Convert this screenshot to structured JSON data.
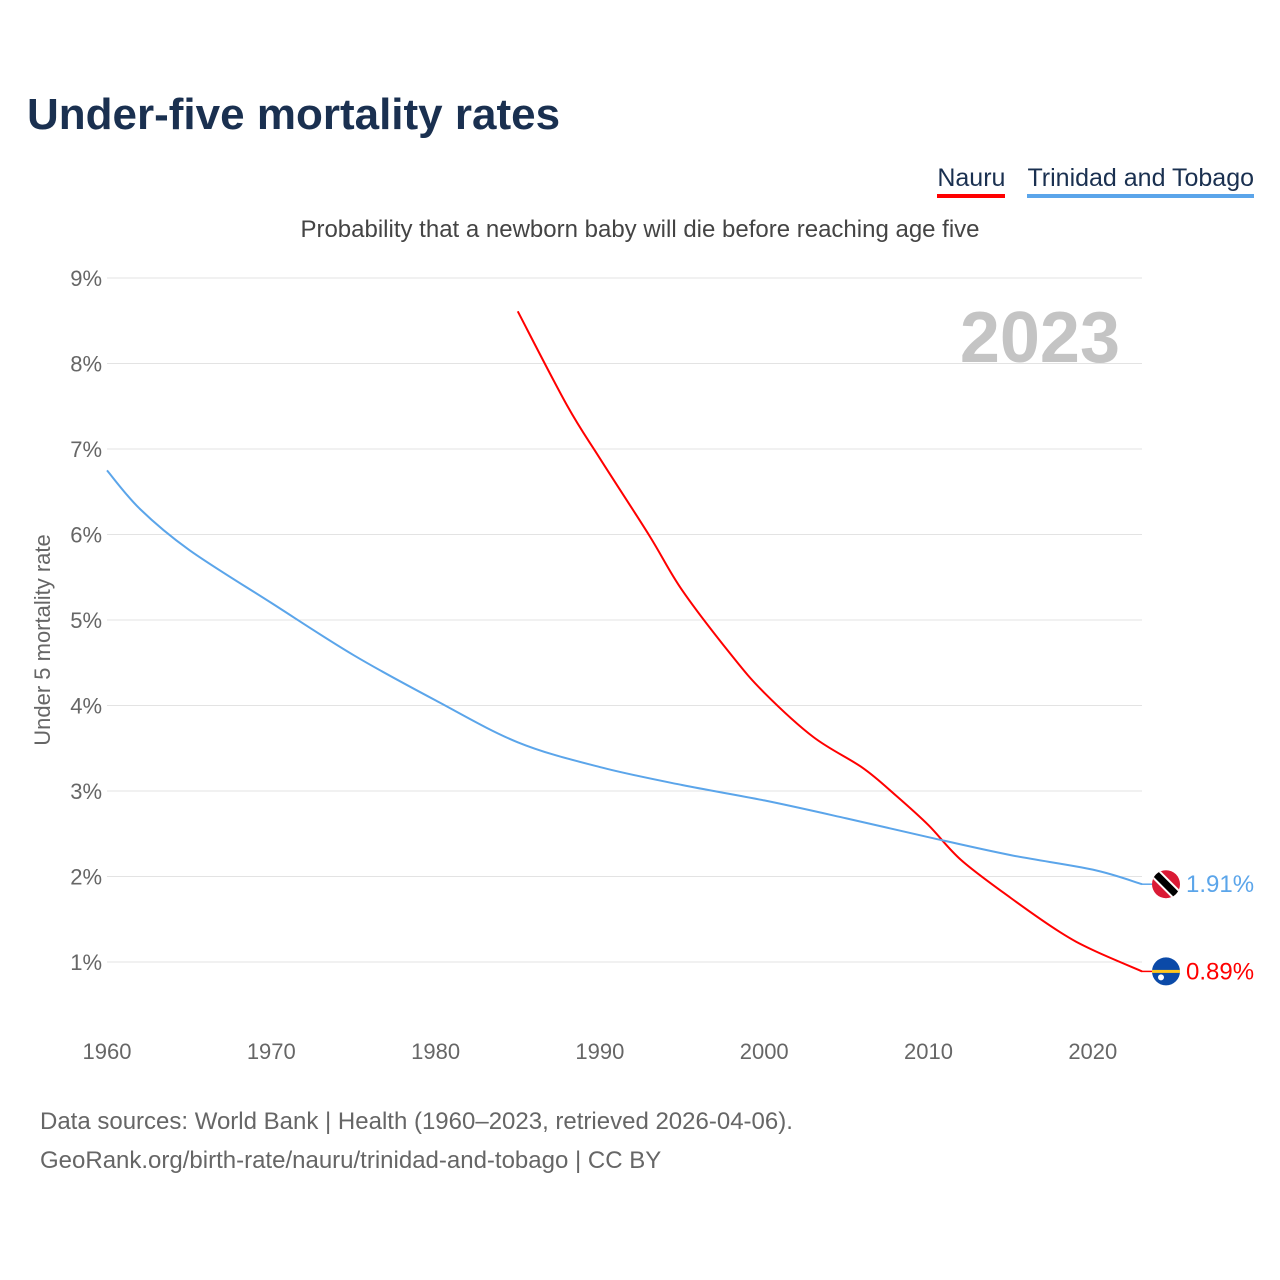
{
  "title": "Under-five mortality rates",
  "subtitle": "Probability that a newborn baby will die before reaching age five",
  "footer": {
    "sources": "Data sources: World Bank | Health (1960–2023, retrieved 2026-04-06).",
    "credit": "GeoRank.org/birth-rate/nauru/trinidad-and-tobago | CC BY"
  },
  "chart_data": {
    "type": "line",
    "title": "Under-five mortality rates",
    "ylabel": "Under 5 mortality rate",
    "xlabel": "",
    "year_label": "2023",
    "xlim": [
      1960,
      2023
    ],
    "ylim": [
      0,
      9
    ],
    "x_ticks": [
      "1960",
      "1970",
      "1980",
      "1990",
      "2000",
      "2010",
      "2020"
    ],
    "y_ticks": [
      "1%",
      "2%",
      "3%",
      "4%",
      "5%",
      "6%",
      "7%",
      "8%",
      "9%"
    ],
    "legend_position": "top-right",
    "series": [
      {
        "name": "Nauru",
        "color": "#ff0000",
        "end_label": "0.89%",
        "x": [
          1985,
          1988,
          1990,
          1993,
          1995,
          1998,
          2000,
          2003,
          2006,
          2008,
          2010,
          2012,
          2015,
          2018,
          2020,
          2023
        ],
        "values": [
          8.61,
          7.51,
          6.89,
          5.99,
          5.35,
          4.59,
          4.15,
          3.63,
          3.27,
          2.95,
          2.6,
          2.19,
          1.75,
          1.35,
          1.14,
          0.89
        ]
      },
      {
        "name": "Trinidad and Tobago",
        "color": "#5ba5ea",
        "end_label": "1.91%",
        "x": [
          1960,
          1962,
          1965,
          1970,
          1975,
          1980,
          1985,
          1990,
          1995,
          2000,
          2005,
          2010,
          2015,
          2020,
          2023
        ],
        "values": [
          6.75,
          6.3,
          5.82,
          5.2,
          4.59,
          4.06,
          3.57,
          3.28,
          3.07,
          2.89,
          2.68,
          2.46,
          2.25,
          2.08,
          1.91
        ]
      }
    ]
  }
}
